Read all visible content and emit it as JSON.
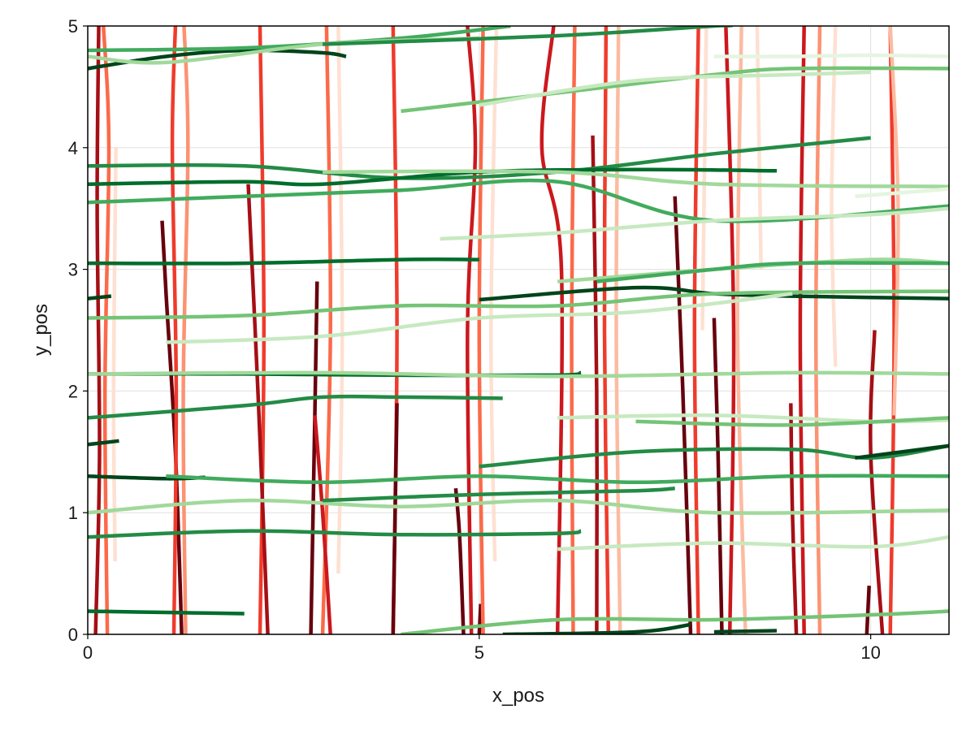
{
  "chart_data": {
    "type": "line",
    "title": "",
    "xlabel": "x_pos",
    "ylabel": "y_pos",
    "xlim": [
      0,
      11
    ],
    "ylim": [
      0,
      5
    ],
    "x_ticks": [
      {
        "value": 0,
        "label": "0"
      },
      {
        "value": 5,
        "label": "5"
      },
      {
        "value": 10,
        "label": "10"
      }
    ],
    "y_ticks": [
      {
        "value": 0,
        "label": "0"
      },
      {
        "value": 1,
        "label": "1"
      },
      {
        "value": 2,
        "label": "2"
      },
      {
        "value": 3,
        "label": "3"
      },
      {
        "value": 4,
        "label": "4"
      },
      {
        "value": 5,
        "label": "5"
      }
    ],
    "grid": true,
    "legend": "none",
    "colormaps": {
      "vertical_tracks": "Reds",
      "horizontal_tracks": "Greens"
    },
    "vertical_series": [
      {
        "x": [
          0.1,
          0.15,
          0.12,
          0.14
        ],
        "y": [
          0.0,
          1.5,
          3.5,
          5.0
        ],
        "color": "#a50f15"
      },
      {
        "x": [
          0.25,
          0.22,
          0.27,
          0.2
        ],
        "y": [
          0.0,
          2.0,
          4.0,
          5.0
        ],
        "color": "#fb6a4a"
      },
      {
        "x": [
          0.35,
          0.33,
          0.36
        ],
        "y": [
          0.6,
          2.0,
          4.0
        ],
        "color": "#fee0d2"
      },
      {
        "x": [
          1.2,
          1.12,
          1.0,
          0.95
        ],
        "y": [
          0.0,
          1.5,
          2.8,
          3.4
        ],
        "color": "#67000d"
      },
      {
        "x": [
          1.1,
          1.13,
          1.08,
          1.12
        ],
        "y": [
          0.0,
          2.0,
          4.0,
          5.0
        ],
        "color": "#ef3b2c"
      },
      {
        "x": [
          1.25,
          1.22,
          1.28,
          1.23
        ],
        "y": [
          0.0,
          2.0,
          4.0,
          5.0
        ],
        "color": "#fc9272"
      },
      {
        "x": [
          2.2,
          2.25,
          2.2
        ],
        "y": [
          0.0,
          2.5,
          5.0
        ],
        "color": "#ef3b2c"
      },
      {
        "x": [
          2.3,
          2.18,
          2.05
        ],
        "y": [
          0.0,
          1.9,
          3.7
        ],
        "color": "#a50f15"
      },
      {
        "x": [
          2.85,
          2.9,
          2.93
        ],
        "y": [
          0.0,
          1.8,
          2.9
        ],
        "color": "#67000d"
      },
      {
        "x": [
          3.0,
          3.1,
          3.05
        ],
        "y": [
          0.0,
          2.5,
          5.0
        ],
        "color": "#fb6a4a"
      },
      {
        "x": [
          3.1,
          3.0,
          2.9
        ],
        "y": [
          0.0,
          1.0,
          1.8
        ],
        "color": "#cb181d"
      },
      {
        "x": [
          3.2,
          3.25,
          3.2
        ],
        "y": [
          0.5,
          2.5,
          5.0
        ],
        "color": "#fee0d2"
      },
      {
        "x": [
          3.9,
          3.95,
          3.9
        ],
        "y": [
          0.0,
          2.5,
          5.0
        ],
        "color": "#ef3b2c"
      },
      {
        "x": [
          3.9,
          3.95
        ],
        "y": [
          0.0,
          1.9
        ],
        "color": "#67000d"
      },
      {
        "x": [
          4.8,
          4.75,
          4.7
        ],
        "y": [
          0.0,
          0.8,
          1.2
        ],
        "color": "#67000d"
      },
      {
        "x": [
          4.9,
          4.85,
          4.95,
          4.85
        ],
        "y": [
          0.0,
          2.5,
          4.0,
          5.0
        ],
        "color": "#cb181d"
      },
      {
        "x": [
          5.0,
          5.02
        ],
        "y": [
          0.0,
          0.25
        ],
        "color": "#67000d"
      },
      {
        "x": [
          5.05,
          5.0,
          5.05
        ],
        "y": [
          0.0,
          2.5,
          5.0
        ],
        "color": "#fb6a4a"
      },
      {
        "x": [
          5.2,
          5.15,
          5.22
        ],
        "y": [
          0.6,
          2.5,
          5.0
        ],
        "color": "#fee0d2"
      },
      {
        "x": [
          6.0,
          6.05,
          5.8,
          5.95
        ],
        "y": [
          0.0,
          3.0,
          4.0,
          5.0
        ],
        "color": "#cb181d"
      },
      {
        "x": [
          6.2,
          6.18,
          6.22
        ],
        "y": [
          0.0,
          2.5,
          5.0
        ],
        "color": "#fb6a4a"
      },
      {
        "x": [
          6.5,
          6.5,
          6.45
        ],
        "y": [
          0.0,
          2.0,
          4.1
        ],
        "color": "#a50f15"
      },
      {
        "x": [
          6.65,
          6.6,
          6.62
        ],
        "y": [
          0.0,
          2.5,
          5.0
        ],
        "color": "#ef3b2c"
      },
      {
        "x": [
          6.8,
          6.75,
          6.78
        ],
        "y": [
          0.0,
          2.5,
          5.0
        ],
        "color": "#fcbba1"
      },
      {
        "x": [
          7.7,
          7.6,
          7.5
        ],
        "y": [
          0.0,
          2.0,
          3.6
        ],
        "color": "#67000d"
      },
      {
        "x": [
          7.8,
          7.75,
          7.8
        ],
        "y": [
          0.0,
          2.5,
          5.0
        ],
        "color": "#ef3b2c"
      },
      {
        "x": [
          7.85,
          7.9
        ],
        "y": [
          2.5,
          5.0
        ],
        "color": "#fee0d2"
      },
      {
        "x": [
          8.1,
          8.05,
          8.0
        ],
        "y": [
          0.0,
          1.5,
          2.6
        ],
        "color": "#67000d"
      },
      {
        "x": [
          8.2,
          8.25,
          8.15
        ],
        "y": [
          0.0,
          2.5,
          5.0
        ],
        "color": "#cb181d"
      },
      {
        "x": [
          8.4,
          8.3,
          8.35
        ],
        "y": [
          0.0,
          2.5,
          5.0
        ],
        "color": "#fcbba1"
      },
      {
        "x": [
          8.6,
          8.55
        ],
        "y": [
          3.0,
          5.0
        ],
        "color": "#fee0d2"
      },
      {
        "x": [
          9.05,
          9.0,
          8.98
        ],
        "y": [
          0.0,
          1.0,
          1.9
        ],
        "color": "#a50f15"
      },
      {
        "x": [
          9.15,
          9.1,
          9.15
        ],
        "y": [
          0.0,
          2.5,
          5.0
        ],
        "color": "#cb181d"
      },
      {
        "x": [
          9.35,
          9.3,
          9.35
        ],
        "y": [
          0.0,
          2.5,
          5.0
        ],
        "color": "#fc9272"
      },
      {
        "x": [
          9.55,
          9.5,
          9.55
        ],
        "y": [
          2.2,
          3.5,
          5.0
        ],
        "color": "#fee0d2"
      },
      {
        "x": [
          9.95,
          9.98
        ],
        "y": [
          0.0,
          0.4
        ],
        "color": "#67000d"
      },
      {
        "x": [
          10.15,
          10.0,
          10.05
        ],
        "y": [
          0.0,
          1.5,
          2.5
        ],
        "color": "#a50f15"
      },
      {
        "x": [
          10.25,
          10.3,
          10.25
        ],
        "y": [
          0.0,
          2.5,
          5.0
        ],
        "color": "#ef3b2c"
      },
      {
        "x": [
          10.3,
          10.35,
          10.25
        ],
        "y": [
          1.8,
          3.5,
          5.0
        ],
        "color": "#fcbba1"
      }
    ],
    "horizontal_series": [
      {
        "x": [
          0,
          1,
          2,
          3,
          3.3
        ],
        "y": [
          4.65,
          4.75,
          4.8,
          4.78,
          4.75
        ],
        "color": "#00441b"
      },
      {
        "x": [
          0,
          2,
          4,
          5.4
        ],
        "y": [
          4.8,
          4.82,
          4.9,
          5.0
        ],
        "color": "#41ab5d"
      },
      {
        "x": [
          0,
          1,
          3,
          5
        ],
        "y": [
          4.75,
          4.7,
          4.85,
          4.9
        ],
        "color": "#a1d99b"
      },
      {
        "x": [
          3,
          6,
          8,
          8.2
        ],
        "y": [
          4.85,
          4.92,
          5.0,
          5.0
        ],
        "color": "#238b45"
      },
      {
        "x": [
          8,
          9,
          10,
          11
        ],
        "y": [
          4.75,
          4.75,
          4.76,
          4.75
        ],
        "color": "#e5f5e0"
      },
      {
        "x": [
          4,
          6,
          8,
          9,
          11
        ],
        "y": [
          4.3,
          4.45,
          4.6,
          4.65,
          4.65
        ],
        "color": "#74c476"
      },
      {
        "x": [
          5,
          7,
          9,
          10
        ],
        "y": [
          4.35,
          4.55,
          4.6,
          4.62
        ],
        "color": "#c7e9c0"
      },
      {
        "x": [
          0,
          2,
          4,
          6,
          8,
          10
        ],
        "y": [
          3.85,
          3.85,
          3.75,
          3.8,
          3.95,
          4.08
        ],
        "color": "#238b45"
      },
      {
        "x": [
          0,
          2,
          3,
          5,
          7,
          8.8
        ],
        "y": [
          3.7,
          3.72,
          3.7,
          3.8,
          3.82,
          3.81
        ],
        "color": "#006d2c"
      },
      {
        "x": [
          0,
          2,
          4,
          6,
          8,
          11
        ],
        "y": [
          3.55,
          3.6,
          3.65,
          3.72,
          3.4,
          3.52
        ],
        "color": "#41ab5d"
      },
      {
        "x": [
          3,
          6,
          8,
          11
        ],
        "y": [
          3.8,
          3.8,
          3.7,
          3.68
        ],
        "color": "#a1d99b"
      },
      {
        "x": [
          9.8,
          11
        ],
        "y": [
          3.6,
          3.66
        ],
        "color": "#e5f5e0"
      },
      {
        "x": [
          4.5,
          6,
          8,
          10,
          11
        ],
        "y": [
          3.25,
          3.3,
          3.4,
          3.45,
          3.5
        ],
        "color": "#c7e9c0"
      },
      {
        "x": [
          0,
          2,
          4,
          5
        ],
        "y": [
          3.05,
          3.05,
          3.08,
          3.08
        ],
        "color": "#006d2c"
      },
      {
        "x": [
          6,
          8,
          10,
          11
        ],
        "y": [
          2.9,
          3.0,
          3.08,
          3.05
        ],
        "color": "#a1d99b"
      },
      {
        "x": [
          6.5,
          8,
          9,
          11
        ],
        "y": [
          2.9,
          3.0,
          3.05,
          3.05
        ],
        "color": "#41ab5d"
      },
      {
        "x": [
          0,
          0.3
        ],
        "y": [
          2.76,
          2.78
        ],
        "color": "#00441b"
      },
      {
        "x": [
          5,
          7,
          8,
          9,
          11
        ],
        "y": [
          2.75,
          2.85,
          2.8,
          2.78,
          2.76
        ],
        "color": "#00441b"
      },
      {
        "x": [
          0,
          2,
          4,
          6,
          8,
          11
        ],
        "y": [
          2.6,
          2.62,
          2.7,
          2.7,
          2.8,
          2.82
        ],
        "color": "#74c476"
      },
      {
        "x": [
          1,
          3,
          5,
          7,
          9
        ],
        "y": [
          2.4,
          2.45,
          2.6,
          2.65,
          2.8
        ],
        "color": "#c7e9c0"
      },
      {
        "x": [
          0,
          2,
          4,
          6,
          6.3
        ],
        "y": [
          2.14,
          2.14,
          2.13,
          2.13,
          2.15
        ],
        "color": "#006d2c"
      },
      {
        "x": [
          0,
          3,
          6,
          9,
          11
        ],
        "y": [
          2.14,
          2.15,
          2.12,
          2.15,
          2.14
        ],
        "color": "#a1d99b"
      },
      {
        "x": [
          0,
          2,
          3,
          4,
          5.3
        ],
        "y": [
          1.78,
          1.88,
          1.95,
          1.95,
          1.94
        ],
        "color": "#238b45"
      },
      {
        "x": [
          6,
          8,
          10,
          11
        ],
        "y": [
          1.78,
          1.8,
          1.75,
          1.76
        ],
        "color": "#c7e9c0"
      },
      {
        "x": [
          7,
          9,
          11
        ],
        "y": [
          1.75,
          1.72,
          1.78
        ],
        "color": "#74c476"
      },
      {
        "x": [
          0,
          0.4
        ],
        "y": [
          1.56,
          1.59
        ],
        "color": "#00441b"
      },
      {
        "x": [
          5,
          7,
          9,
          10,
          11
        ],
        "y": [
          1.38,
          1.5,
          1.52,
          1.45,
          1.55
        ],
        "color": "#238b45"
      },
      {
        "x": [
          9.8,
          11
        ],
        "y": [
          1.45,
          1.55
        ],
        "color": "#00441b"
      },
      {
        "x": [
          0,
          1,
          1.5
        ],
        "y": [
          1.3,
          1.28,
          1.29
        ],
        "color": "#00441b"
      },
      {
        "x": [
          1,
          3,
          5,
          7,
          9,
          11
        ],
        "y": [
          1.3,
          1.25,
          1.3,
          1.25,
          1.3,
          1.3
        ],
        "color": "#41ab5d"
      },
      {
        "x": [
          0,
          2,
          4,
          6,
          8,
          11
        ],
        "y": [
          1.0,
          1.1,
          1.05,
          1.1,
          1.0,
          1.02
        ],
        "color": "#a1d99b"
      },
      {
        "x": [
          3,
          5,
          7,
          7.5
        ],
        "y": [
          1.1,
          1.15,
          1.18,
          1.2
        ],
        "color": "#238b45"
      },
      {
        "x": [
          0,
          2,
          4,
          6,
          6.3
        ],
        "y": [
          0.8,
          0.85,
          0.82,
          0.83,
          0.85
        ],
        "color": "#238b45"
      },
      {
        "x": [
          6,
          8,
          10,
          11
        ],
        "y": [
          0.7,
          0.75,
          0.72,
          0.8
        ],
        "color": "#c7e9c0"
      },
      {
        "x": [
          0,
          1,
          2
        ],
        "y": [
          0.19,
          0.18,
          0.17
        ],
        "color": "#006d2c"
      },
      {
        "x": [
          4,
          6,
          8,
          10,
          11
        ],
        "y": [
          0.0,
          0.12,
          0.12,
          0.16,
          0.19
        ],
        "color": "#74c476"
      },
      {
        "x": [
          5.3,
          7,
          7.7
        ],
        "y": [
          0.0,
          0.02,
          0.08
        ],
        "color": "#00441b"
      },
      {
        "x": [
          8,
          8.8
        ],
        "y": [
          0.02,
          0.03
        ],
        "color": "#00441b"
      }
    ]
  }
}
